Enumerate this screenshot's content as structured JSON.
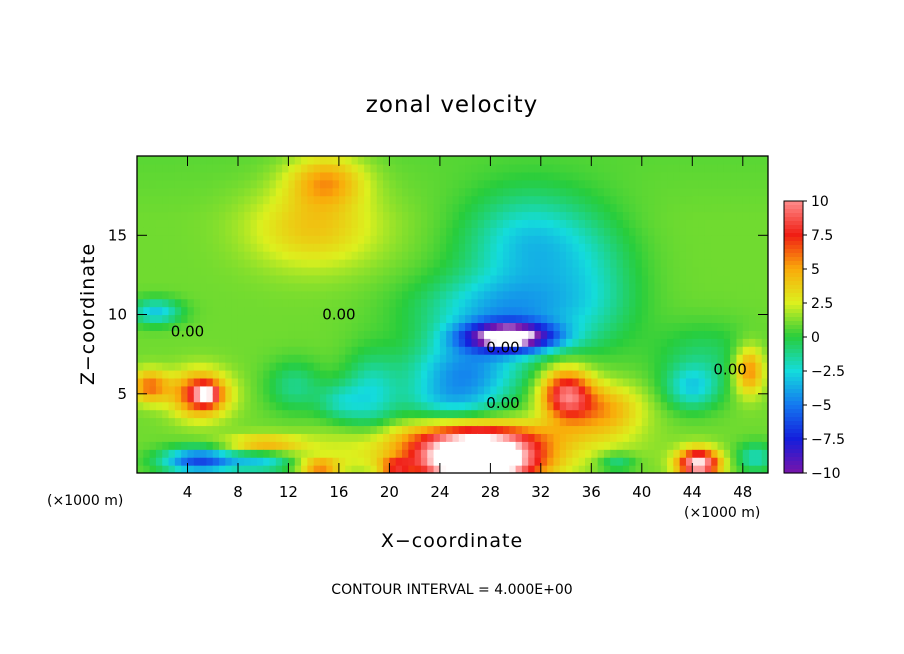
{
  "chart_data": {
    "type": "heatmap",
    "title": "zonal velocity",
    "xlabel": "X−coordinate",
    "ylabel": "Z−coordinate",
    "x_unit_left": "(×1000 m)",
    "x_unit_right": "(×1000 m)",
    "footer": "CONTOUR INTERVAL = 4.000E+00",
    "xlim": [
      0,
      50
    ],
    "ylim": [
      0,
      20
    ],
    "x_ticks": [
      {
        "value": 4,
        "label": "4"
      },
      {
        "value": 8,
        "label": "8"
      },
      {
        "value": 12,
        "label": "12"
      },
      {
        "value": 16,
        "label": "16"
      },
      {
        "value": 20,
        "label": "20"
      },
      {
        "value": 24,
        "label": "24"
      },
      {
        "value": 28,
        "label": "28"
      },
      {
        "value": 32,
        "label": "32"
      },
      {
        "value": 36,
        "label": "36"
      },
      {
        "value": 40,
        "label": "40"
      },
      {
        "value": 44,
        "label": "44"
      },
      {
        "value": 48,
        "label": "48"
      }
    ],
    "y_ticks": [
      {
        "value": 5,
        "label": "5"
      },
      {
        "value": 10,
        "label": "10"
      },
      {
        "value": 15,
        "label": "15"
      }
    ],
    "colorbar": {
      "min": -10,
      "max": 10,
      "ticks": [
        {
          "value": 10,
          "label": "10"
        },
        {
          "value": 7.5,
          "label": "7.5"
        },
        {
          "value": 5,
          "label": "5"
        },
        {
          "value": 2.5,
          "label": "2.5"
        },
        {
          "value": 0,
          "label": "0"
        },
        {
          "value": -2.5,
          "label": "−2.5"
        },
        {
          "value": -5,
          "label": "−5"
        },
        {
          "value": -7.5,
          "label": "−7.5"
        },
        {
          "value": -10,
          "label": "−10"
        }
      ]
    },
    "contour_labels": [
      {
        "text": "0.00",
        "x": 4,
        "y": 8.6
      },
      {
        "text": "0.00",
        "x": 16,
        "y": 9.7
      },
      {
        "text": "0.00",
        "x": 29,
        "y": 7.6
      },
      {
        "text": "0.00",
        "x": 29,
        "y": 4.1
      },
      {
        "text": "0.00",
        "x": 47,
        "y": 6.2
      }
    ],
    "features": [
      {
        "x": 29.5,
        "y": 8.6,
        "sx": 3.6,
        "sy": 0.9,
        "value": -12.0
      },
      {
        "x": 29,
        "y": 10.2,
        "sx": 6.5,
        "sy": 2.3,
        "value": -4.5
      },
      {
        "x": 31,
        "y": 14.5,
        "sx": 5.0,
        "sy": 3.2,
        "value": -4.0
      },
      {
        "x": 36,
        "y": 12,
        "sx": 4.0,
        "sy": 4.0,
        "value": -2.0
      },
      {
        "x": 26,
        "y": 6.5,
        "sx": 4.5,
        "sy": 1.8,
        "value": -5.0
      },
      {
        "x": 25,
        "y": 4.6,
        "sx": 4.0,
        "sy": 1.3,
        "value": -3.0
      },
      {
        "x": 18.5,
        "y": 5.0,
        "sx": 2.2,
        "sy": 2.5,
        "value": -3.0
      },
      {
        "x": 12.5,
        "y": 5.5,
        "sx": 2.2,
        "sy": 1.6,
        "value": -2.2
      },
      {
        "x": 16,
        "y": 4.5,
        "sx": 1.8,
        "sy": 1.2,
        "value": -2.2
      },
      {
        "x": 1.5,
        "y": 10.2,
        "sx": 2.0,
        "sy": 0.8,
        "value": -4.0
      },
      {
        "x": 44,
        "y": 5.4,
        "sx": 2.2,
        "sy": 1.4,
        "value": -3.5
      },
      {
        "x": 45,
        "y": 7.5,
        "sx": 4.0,
        "sy": 2.0,
        "value": -1.6
      },
      {
        "x": 49,
        "y": 1.0,
        "sx": 1.5,
        "sy": 0.9,
        "value": -3.0
      },
      {
        "x": 5,
        "y": 0.8,
        "sx": 3.0,
        "sy": 0.8,
        "value": -7.5
      },
      {
        "x": 10,
        "y": 0.8,
        "sx": 2.5,
        "sy": 0.8,
        "value": -4.0
      },
      {
        "x": 38,
        "y": 0.7,
        "sx": 1.5,
        "sy": 0.6,
        "value": -2.5
      },
      {
        "x": 5,
        "y": 5.0,
        "sx": 2.2,
        "sy": 1.4,
        "value": 7.0
      },
      {
        "x": 5.5,
        "y": 5.0,
        "sx": 0.9,
        "sy": 0.6,
        "value": 6.0
      },
      {
        "x": 1,
        "y": 5.5,
        "sx": 1.5,
        "sy": 1.0,
        "value": 5.0
      },
      {
        "x": 34,
        "y": 5.0,
        "sx": 2.0,
        "sy": 1.6,
        "value": 8.0
      },
      {
        "x": 37,
        "y": 4.0,
        "sx": 3.0,
        "sy": 1.6,
        "value": 4.0
      },
      {
        "x": 27,
        "y": 0.8,
        "sx": 4.5,
        "sy": 1.6,
        "value": 16.0
      },
      {
        "x": 27,
        "y": 2.4,
        "sx": 8.0,
        "sy": 1.0,
        "value": 3.5
      },
      {
        "x": 44.5,
        "y": 0.6,
        "sx": 1.6,
        "sy": 0.9,
        "value": 11.0
      },
      {
        "x": 48.5,
        "y": 6.5,
        "sx": 1.2,
        "sy": 1.5,
        "value": 5.0
      },
      {
        "x": 14,
        "y": 15.5,
        "sx": 5.0,
        "sy": 2.5,
        "value": 3.0
      },
      {
        "x": 15,
        "y": 18.5,
        "sx": 3.0,
        "sy": 1.6,
        "value": 4.0
      },
      {
        "x": 24,
        "y": 1.2,
        "sx": 12.0,
        "sy": 1.2,
        "value": 2.0
      },
      {
        "x": 10,
        "y": 1.8,
        "sx": 3.0,
        "sy": 0.6,
        "value": 4.0
      },
      {
        "x": 14.5,
        "y": 0.4,
        "sx": 1.5,
        "sy": 0.5,
        "value": 4.5
      },
      {
        "x": 20.5,
        "y": 0.4,
        "sx": 1.2,
        "sy": 0.5,
        "value": 4.5
      }
    ]
  }
}
